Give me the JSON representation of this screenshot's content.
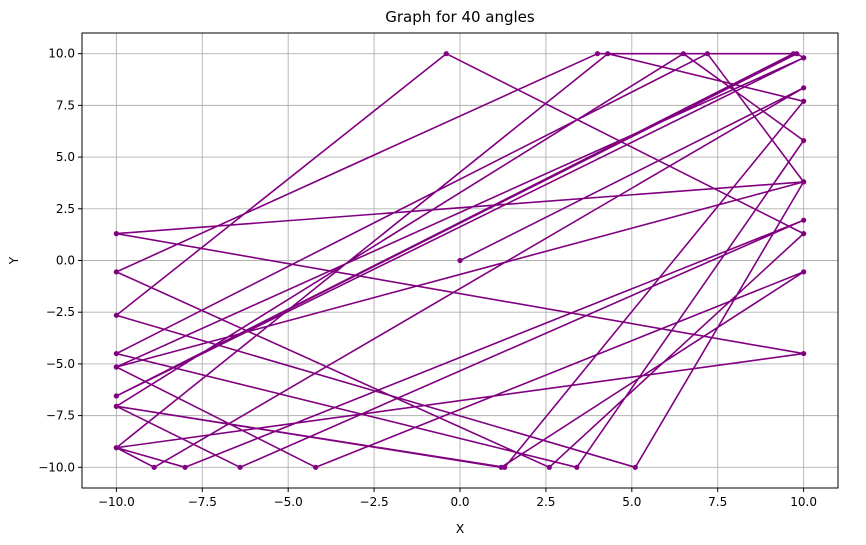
{
  "chart_data": {
    "type": "line",
    "title": "Graph for 40 angles",
    "xlabel": "X",
    "ylabel": "Y",
    "xlim": [
      -11,
      11
    ],
    "ylim": [
      -11,
      11
    ],
    "xticks": [
      -10.0,
      -7.5,
      -5.0,
      -2.5,
      0.0,
      2.5,
      5.0,
      7.5,
      10.0
    ],
    "xtick_labels": [
      "−10.0",
      "−7.5",
      "−5.0",
      "−2.5",
      "0.0",
      "2.5",
      "5.0",
      "7.5",
      "10.0"
    ],
    "yticks": [
      -10.0,
      -7.5,
      -5.0,
      -2.5,
      0.0,
      2.5,
      5.0,
      7.5,
      10.0
    ],
    "ytick_labels": [
      "−10.0",
      "−7.5",
      "−5.0",
      "−2.5",
      "0.0",
      "2.5",
      "5.0",
      "7.5",
      "10.0"
    ],
    "grid": true,
    "color": "#800080",
    "marker": "circle",
    "series": [
      {
        "x": [
          0.0,
          10.0,
          -8.9,
          -10.0,
          4.3,
          10.0,
          1.3,
          -10.0,
          6.5,
          10.0,
          3.4,
          -10.0,
          7.2,
          10.0,
          5.1,
          -10.0,
          -0.4,
          10.0,
          2.6,
          -10.0,
          4.0,
          9.7,
          -10.0,
          9.8,
          10.0,
          -10.0,
          -4.2,
          10.0,
          1.2,
          -10.0,
          -6.4,
          10.0,
          -8.0,
          -10.0,
          10.0,
          -10.0,
          10.0,
          -10.0,
          10.0,
          -10.0
        ],
        "y": [
          0.0,
          8.35,
          -10.0,
          -9.05,
          10.0,
          7.7,
          -10.0,
          -7.05,
          10.0,
          5.8,
          -10.0,
          -4.5,
          10.0,
          3.8,
          -10.0,
          -2.65,
          10.0,
          1.3,
          -10.0,
          -0.55,
          10.0,
          10.0,
          -6.55,
          10.0,
          9.8,
          -5.15,
          -10.0,
          -0.55,
          -10.0,
          -7.05,
          -10.0,
          1.95,
          -10.0,
          -9.05,
          -4.5,
          1.3,
          3.8,
          -5.15,
          9.8,
          -6.55
        ]
      }
    ]
  }
}
